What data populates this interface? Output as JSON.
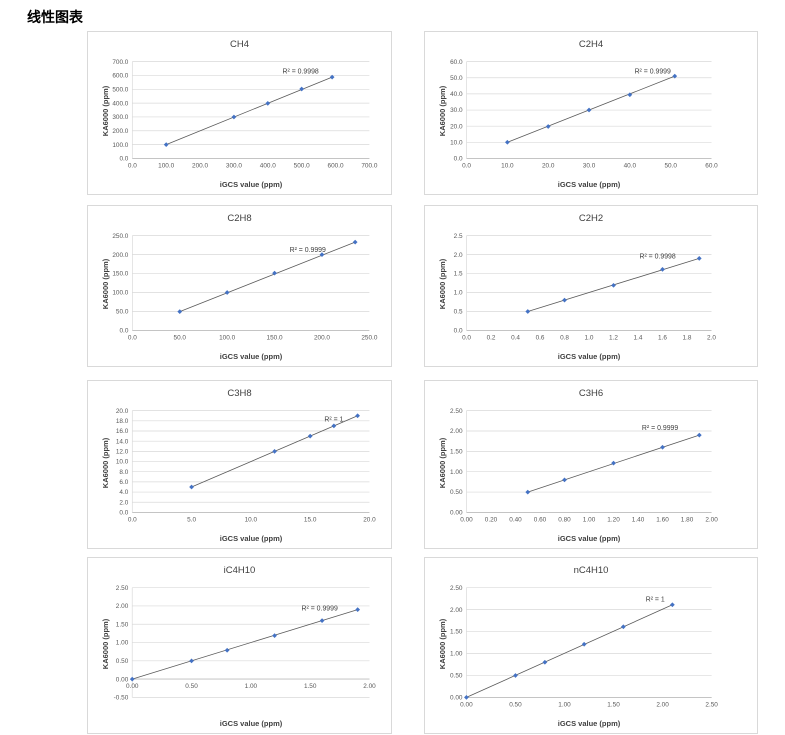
{
  "page": {
    "title": "线性图表"
  },
  "colors": {
    "marker": "#4472C4",
    "trendline": "#595959",
    "gridline": "#d9d9d9",
    "axis_line": "#bfbfbf",
    "box_border": "#d9d9d9",
    "tick_text": "#595959",
    "title_text": "#404040"
  },
  "chart_data": [
    {
      "type": "scatter",
      "title": "CH4",
      "xlabel": "iGCS value (ppm)",
      "ylabel": "KA6000 (ppm)",
      "r2_label": "R² = 0.9998",
      "r2_pos": [
        0.71,
        0.08
      ],
      "x_range": [
        0,
        700
      ],
      "y_range": [
        0,
        700
      ],
      "x_ticks": [
        "0.0",
        "100.0",
        "200.0",
        "300.0",
        "400.0",
        "500.0",
        "600.0",
        "700.0"
      ],
      "y_ticks": [
        "0.0",
        "100.0",
        "200.0",
        "300.0",
        "400.0",
        "500.0",
        "600.0",
        "700.0"
      ],
      "points": [
        [
          100,
          100
        ],
        [
          300,
          300
        ],
        [
          400,
          398
        ],
        [
          500,
          502
        ],
        [
          590,
          588
        ]
      ],
      "trendline": true
    },
    {
      "type": "scatter",
      "title": "C2H4",
      "xlabel": "iGCS value (ppm)",
      "ylabel": "KA6000 (ppm)",
      "r2_label": "R² = 0.9999",
      "r2_pos": [
        0.76,
        0.08
      ],
      "x_range": [
        0,
        60
      ],
      "y_range": [
        0,
        60
      ],
      "x_ticks": [
        "0.0",
        "10.0",
        "20.0",
        "30.0",
        "40.0",
        "50.0",
        "60.0"
      ],
      "y_ticks": [
        "0.0",
        "10.0",
        "20.0",
        "30.0",
        "40.0",
        "50.0",
        "60.0"
      ],
      "points": [
        [
          10,
          10
        ],
        [
          20,
          19.8
        ],
        [
          30,
          30
        ],
        [
          40,
          39.5
        ],
        [
          51,
          51
        ]
      ],
      "trendline": true
    },
    {
      "type": "scatter",
      "title": "C2H8",
      "xlabel": "iGCS value (ppm)",
      "ylabel": "KA6000 (ppm)",
      "r2_label": "R² = 0.9999",
      "r2_pos": [
        0.74,
        0.13
      ],
      "x_range": [
        0,
        250
      ],
      "y_range": [
        0,
        250
      ],
      "x_ticks": [
        "0.0",
        "50.0",
        "100.0",
        "150.0",
        "200.0",
        "250.0"
      ],
      "y_ticks": [
        "0.0",
        "50.0",
        "100.0",
        "150.0",
        "200.0",
        "250.0"
      ],
      "points": [
        [
          50,
          49.5
        ],
        [
          100,
          100
        ],
        [
          150,
          151
        ],
        [
          200,
          200
        ],
        [
          235,
          233
        ]
      ],
      "trendline": true
    },
    {
      "type": "scatter",
      "title": "C2H2",
      "xlabel": "iGCS value (ppm)",
      "ylabel": "KA6000 (ppm)",
      "r2_label": "R² = 0.9998",
      "r2_pos": [
        0.78,
        0.2
      ],
      "x_range": [
        0,
        2.0
      ],
      "y_range": [
        0,
        2.5
      ],
      "x_ticks": [
        "0.0",
        "0.2",
        "0.4",
        "0.6",
        "0.8",
        "1.0",
        "1.2",
        "1.4",
        "1.6",
        "1.8",
        "2.0"
      ],
      "y_ticks": [
        "0.0",
        "0.5",
        "1.0",
        "1.5",
        "2.0",
        "2.5"
      ],
      "points": [
        [
          0.5,
          0.5
        ],
        [
          0.8,
          0.8
        ],
        [
          1.2,
          1.19
        ],
        [
          1.6,
          1.61
        ],
        [
          1.9,
          1.9
        ]
      ],
      "trendline": true
    },
    {
      "type": "scatter",
      "title": "C3H8",
      "xlabel": "iGCS value (ppm)",
      "ylabel": "KA6000 (ppm)",
      "r2_label": "R² = 1",
      "r2_pos": [
        0.85,
        0.07
      ],
      "x_range": [
        0,
        20
      ],
      "y_range": [
        0,
        20
      ],
      "x_ticks": [
        "0.0",
        "5.0",
        "10.0",
        "15.0",
        "20.0"
      ],
      "y_ticks": [
        "0.0",
        "2.0",
        "4.0",
        "6.0",
        "8.0",
        "10.0",
        "12.0",
        "14.0",
        "16.0",
        "18.0",
        "20.0"
      ],
      "points": [
        [
          5,
          5
        ],
        [
          12,
          12
        ],
        [
          15,
          15
        ],
        [
          17,
          17
        ],
        [
          19,
          19
        ]
      ],
      "trendline": true
    },
    {
      "type": "scatter",
      "title": "C3H6",
      "xlabel": "iGCS value (ppm)",
      "ylabel": "KA6000 (ppm)",
      "r2_label": "R² = 0.9999",
      "r2_pos": [
        0.79,
        0.15
      ],
      "x_range": [
        0,
        2.0
      ],
      "y_range": [
        0,
        2.5
      ],
      "x_ticks": [
        "0.00",
        "0.20",
        "0.40",
        "0.60",
        "0.80",
        "1.00",
        "1.20",
        "1.40",
        "1.60",
        "1.80",
        "2.00"
      ],
      "y_ticks": [
        "0.00",
        "0.50",
        "1.00",
        "1.50",
        "2.00",
        "2.50"
      ],
      "points": [
        [
          0.5,
          0.5
        ],
        [
          0.8,
          0.8
        ],
        [
          1.2,
          1.21
        ],
        [
          1.6,
          1.6
        ],
        [
          1.9,
          1.9
        ]
      ],
      "trendline": true
    },
    {
      "type": "scatter",
      "title": "iC4H10",
      "xlabel": "iGCS value (ppm)",
      "ylabel": "KA6000 (ppm)",
      "r2_label": "R² = 0.9999",
      "r2_pos": [
        0.79,
        0.17
      ],
      "x_range": [
        0,
        2.0
      ],
      "y_range": [
        -0.5,
        2.5
      ],
      "x_ticks": [
        "0.00",
        "0.50",
        "1.00",
        "1.50",
        "2.00"
      ],
      "y_ticks": [
        "-0.50",
        "0.00",
        "0.50",
        "1.00",
        "1.50",
        "2.00",
        "2.50"
      ],
      "points": [
        [
          0,
          0
        ],
        [
          0.5,
          0.5
        ],
        [
          0.8,
          0.79
        ],
        [
          1.2,
          1.19
        ],
        [
          1.6,
          1.6
        ],
        [
          1.9,
          1.9
        ]
      ],
      "trendline": true
    },
    {
      "type": "scatter",
      "title": "nC4H10",
      "xlabel": "iGCS value (ppm)",
      "ylabel": "KA6000 (ppm)",
      "r2_label": "R² = 1",
      "r2_pos": [
        0.77,
        0.09
      ],
      "x_range": [
        0,
        2.5
      ],
      "y_range": [
        0,
        2.5
      ],
      "x_ticks": [
        "0.00",
        "0.50",
        "1.00",
        "1.50",
        "2.00",
        "2.50"
      ],
      "y_ticks": [
        "0.00",
        "0.50",
        "1.00",
        "1.50",
        "2.00",
        "2.50"
      ],
      "points": [
        [
          0,
          0
        ],
        [
          0.5,
          0.5
        ],
        [
          0.8,
          0.8
        ],
        [
          1.2,
          1.21
        ],
        [
          1.6,
          1.61
        ],
        [
          2.1,
          2.11
        ]
      ],
      "trendline": true
    }
  ]
}
